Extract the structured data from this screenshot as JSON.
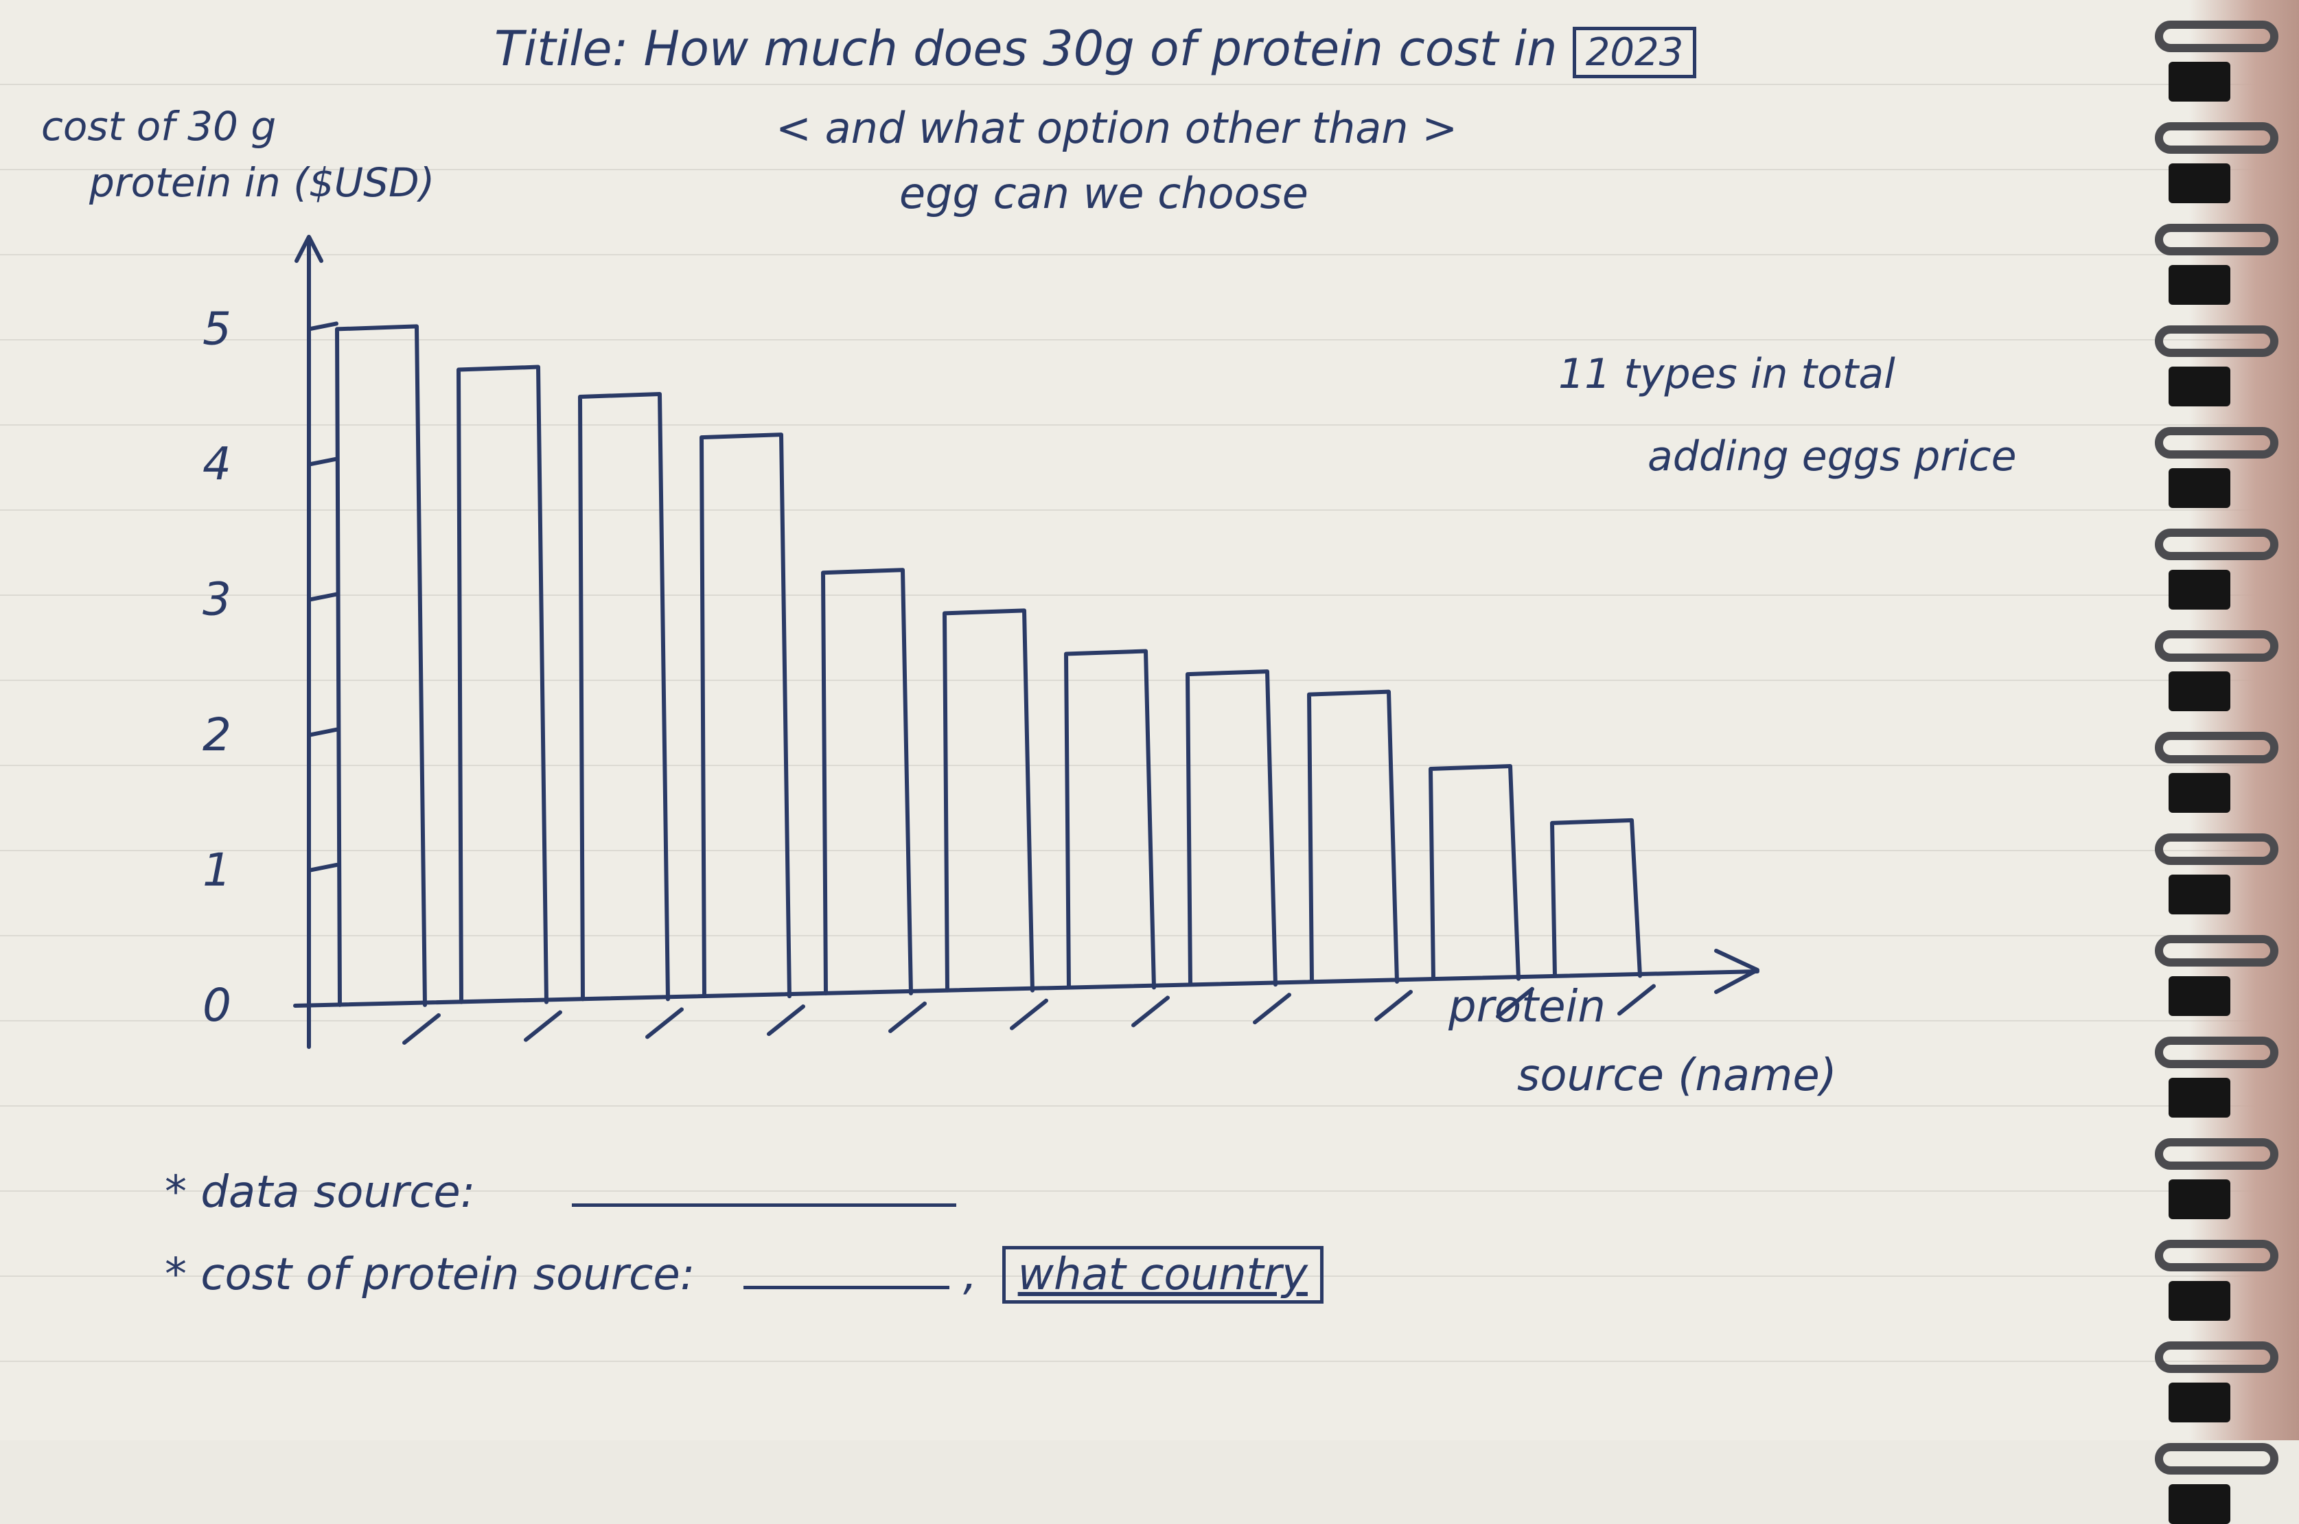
{
  "notes": {
    "title_line1": "Titile: How much does 30g of protein cost in",
    "title_year": "2023",
    "title_line2": "< and what option other than >",
    "title_line3": "egg can we choose",
    "annotation_line1": "11 types in total",
    "annotation_line2": "adding eggs price",
    "footnote_source_label": "* data source:",
    "footnote_cost_label": "* cost of protein source:",
    "footnote_country": "what country"
  },
  "chart_data": {
    "type": "bar",
    "ylabel_line1": "cost of 30 g",
    "ylabel_line2": "protein in ($USD)",
    "xlabel_line1": "protein",
    "xlabel_line2": "source (name)",
    "yticks": [
      "0",
      "1",
      "2",
      "3",
      "4",
      "5"
    ],
    "ylim": [
      0,
      5.2
    ],
    "categories": [
      "",
      "",
      "",
      "",
      "",
      "",
      "",
      "",
      "",
      "",
      ""
    ],
    "values": [
      5.0,
      4.7,
      4.5,
      4.2,
      3.2,
      2.9,
      2.6,
      2.45,
      2.3,
      1.75,
      1.35
    ],
    "grid": false,
    "colors": {
      "ink": "#2a3a66"
    }
  }
}
